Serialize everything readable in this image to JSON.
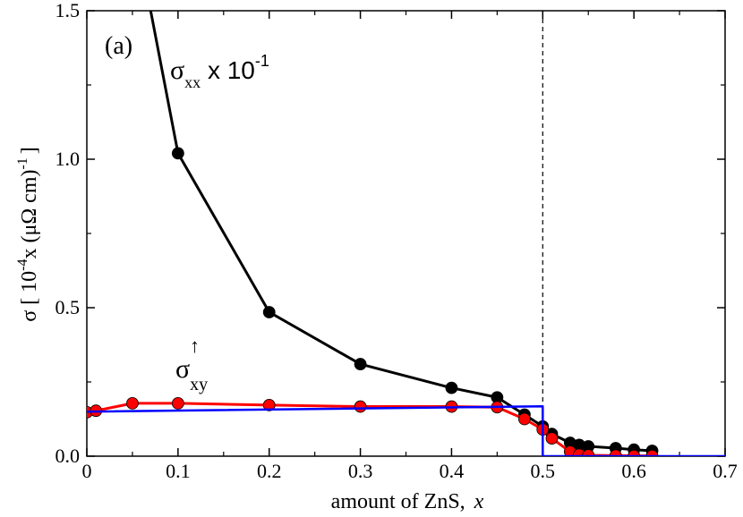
{
  "chart_data": {
    "type": "line",
    "panel_label": "(a)",
    "xlabel": "amount of ZnS,",
    "xlabel_var": "x",
    "ylabel": {
      "prefix": "σ [ 10",
      "exp": "-4",
      "mid": "x (μΩ cm)",
      "exp2": "-1",
      "suffix": "]"
    },
    "xlim": [
      0,
      0.7
    ],
    "ylim": [
      0,
      1.5
    ],
    "xticks": [
      "0",
      "0.1",
      "0.2",
      "0.3",
      "0.4",
      "0.5",
      "0.6",
      "0.7"
    ],
    "yticks": [
      "0.0",
      "0.5",
      "1.0",
      "1.5"
    ],
    "vline_x": 0.5,
    "annotations": {
      "sxx": {
        "main": "σ",
        "sub": "xx",
        "rest": " x 10",
        "sup": "-1"
      },
      "sxy": {
        "main": "σ",
        "sub": "xy",
        "sup": "↑"
      }
    },
    "series": [
      {
        "color": "#000000",
        "markers": true,
        "x": [
          0.07,
          0.1,
          0.2,
          0.3,
          0.4,
          0.45,
          0.48,
          0.5,
          0.51,
          0.53,
          0.54,
          0.55,
          0.58,
          0.6,
          0.62
        ],
        "y": [
          1.5,
          1.02,
          0.485,
          0.31,
          0.23,
          0.198,
          0.14,
          0.1,
          0.075,
          0.045,
          0.038,
          0.033,
          0.027,
          0.022,
          0.018
        ],
        "clip_first": true
      },
      {
        "color": "#ff0000",
        "markers": true,
        "x": [
          0.0,
          0.01,
          0.05,
          0.1,
          0.2,
          0.3,
          0.4,
          0.45,
          0.48,
          0.5,
          0.51,
          0.53,
          0.54,
          0.55,
          0.58,
          0.6,
          0.62
        ],
        "y": [
          0.148,
          0.153,
          0.178,
          0.178,
          0.172,
          0.167,
          0.167,
          0.165,
          0.125,
          0.09,
          0.06,
          0.015,
          0.005,
          0.003,
          0.002,
          0.001,
          0.001
        ]
      },
      {
        "color": "#0000ff",
        "markers": false,
        "x": [
          0.0,
          0.5,
          0.5,
          0.7
        ],
        "y": [
          0.15,
          0.168,
          0.0,
          0.0
        ]
      }
    ]
  }
}
